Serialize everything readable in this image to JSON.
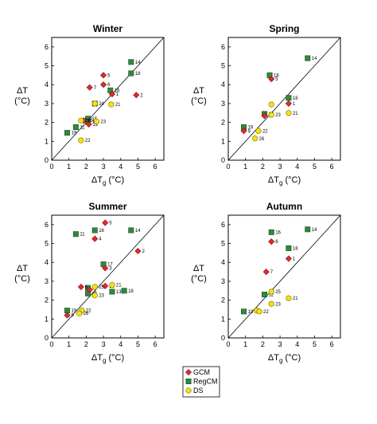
{
  "chart_data": [
    {
      "type": "scatter",
      "title": "Winter",
      "xlabel_main": "ΔT",
      "xlabel_sub": "g",
      "xlabel_unit": "(°C)",
      "ylabel_line1": "ΔT",
      "ylabel_line2": "(°C)",
      "xlim": [
        0,
        6.5
      ],
      "ylim": [
        0,
        6.5
      ],
      "xticks": [
        "0",
        "1",
        "2",
        "3",
        "4",
        "5",
        "6"
      ],
      "yticks": [
        "0",
        "1",
        "2",
        "3",
        "4",
        "5",
        "6"
      ],
      "diagonal": true,
      "series": [
        {
          "name": "GCM",
          "points": [
            {
              "x": 3.0,
              "y": 4.5,
              "label": "5"
            },
            {
              "x": 3.0,
              "y": 4.0,
              "label": "6"
            },
            {
              "x": 2.2,
              "y": 3.85,
              "label": "7"
            },
            {
              "x": 3.5,
              "y": 3.5,
              "label": "1"
            },
            {
              "x": 4.9,
              "y": 3.45,
              "label": "2"
            },
            {
              "x": 1.85,
              "y": 2.1,
              "label": "25"
            },
            {
              "x": 2.15,
              "y": 1.9,
              "label": "22"
            }
          ]
        },
        {
          "name": "RegCM",
          "points": [
            {
              "x": 4.6,
              "y": 5.2,
              "label": "14"
            },
            {
              "x": 4.6,
              "y": 4.6,
              "label": "18"
            },
            {
              "x": 3.4,
              "y": 3.7,
              "label": "16"
            },
            {
              "x": 2.5,
              "y": 3.0,
              "label": "24"
            },
            {
              "x": 2.1,
              "y": 2.2,
              "label": "15"
            },
            {
              "x": 2.1,
              "y": 2.05,
              "label": "12"
            },
            {
              "x": 1.4,
              "y": 1.75,
              "label": "11"
            },
            {
              "x": 0.9,
              "y": 1.45,
              "label": "19"
            }
          ]
        },
        {
          "name": "DS",
          "points": [
            {
              "x": 3.45,
              "y": 2.95,
              "label": "21"
            },
            {
              "x": 2.5,
              "y": 3.0,
              "label": ""
            },
            {
              "x": 2.6,
              "y": 2.05,
              "label": "23"
            },
            {
              "x": 1.7,
              "y": 2.1,
              "label": "26"
            },
            {
              "x": 1.7,
              "y": 1.05,
              "label": "22"
            }
          ]
        }
      ]
    },
    {
      "type": "scatter",
      "title": "Spring",
      "xlabel_main": "ΔT",
      "xlabel_sub": "g",
      "xlabel_unit": "(°C)",
      "ylabel_line1": "ΔT",
      "ylabel_line2": "(°C)",
      "xlim": [
        0,
        6.5
      ],
      "ylim": [
        0,
        6.5
      ],
      "xticks": [
        "0",
        "1",
        "2",
        "3",
        "4",
        "5",
        "6"
      ],
      "yticks": [
        "0",
        "1",
        "2",
        "3",
        "4",
        "5",
        "6"
      ],
      "diagonal": true,
      "series": [
        {
          "name": "GCM",
          "points": [
            {
              "x": 2.5,
              "y": 4.3,
              "label": "5"
            },
            {
              "x": 3.5,
              "y": 3.0,
              "label": "1"
            },
            {
              "x": 2.1,
              "y": 2.35,
              "label": "7"
            },
            {
              "x": 0.9,
              "y": 1.55,
              "label": "9"
            }
          ]
        },
        {
          "name": "RegCM",
          "points": [
            {
              "x": 4.6,
              "y": 5.4,
              "label": "14"
            },
            {
              "x": 2.4,
              "y": 4.5,
              "label": "16"
            },
            {
              "x": 3.5,
              "y": 3.3,
              "label": "18"
            },
            {
              "x": 2.1,
              "y": 2.45,
              "label": "12"
            },
            {
              "x": 0.9,
              "y": 1.75,
              "label": "19"
            }
          ]
        },
        {
          "name": "DS",
          "points": [
            {
              "x": 2.5,
              "y": 2.95,
              "label": ""
            },
            {
              "x": 3.5,
              "y": 2.5,
              "label": "21"
            },
            {
              "x": 2.5,
              "y": 2.4,
              "label": "23"
            },
            {
              "x": 1.75,
              "y": 1.55,
              "label": "22"
            },
            {
              "x": 1.55,
              "y": 1.15,
              "label": "26"
            }
          ]
        }
      ]
    },
    {
      "type": "scatter",
      "title": "Summer",
      "xlabel_main": "ΔT",
      "xlabel_sub": "g",
      "xlabel_unit": "(°C)",
      "ylabel_line1": "ΔT",
      "ylabel_line2": "(°C)",
      "xlim": [
        0,
        6.5
      ],
      "ylim": [
        0,
        6.5
      ],
      "xticks": [
        "0",
        "1",
        "2",
        "3",
        "4",
        "5",
        "6"
      ],
      "yticks": [
        "0",
        "1",
        "2",
        "3",
        "4",
        "5",
        "6"
      ],
      "diagonal": true,
      "series": [
        {
          "name": "GCM",
          "points": [
            {
              "x": 3.1,
              "y": 6.1,
              "label": "5"
            },
            {
              "x": 2.5,
              "y": 5.25,
              "label": "4"
            },
            {
              "x": 5.0,
              "y": 4.6,
              "label": "2"
            },
            {
              "x": 3.1,
              "y": 3.7,
              "label": "3"
            },
            {
              "x": 1.7,
              "y": 2.7,
              "label": "6"
            },
            {
              "x": 2.2,
              "y": 2.55,
              "label": "1"
            },
            {
              "x": 3.1,
              "y": 2.75,
              "label": "25"
            },
            {
              "x": 0.9,
              "y": 1.2,
              "label": "9"
            }
          ]
        },
        {
          "name": "RegCM",
          "points": [
            {
              "x": 1.4,
              "y": 5.5,
              "label": "11"
            },
            {
              "x": 2.5,
              "y": 5.7,
              "label": "16"
            },
            {
              "x": 4.6,
              "y": 5.7,
              "label": "14"
            },
            {
              "x": 3.0,
              "y": 3.9,
              "label": "17"
            },
            {
              "x": 2.1,
              "y": 2.65,
              "label": "7"
            },
            {
              "x": 2.1,
              "y": 2.35,
              "label": "15"
            },
            {
              "x": 3.5,
              "y": 2.45,
              "label": "13"
            },
            {
              "x": 4.2,
              "y": 2.5,
              "label": "18"
            },
            {
              "x": 0.9,
              "y": 1.45,
              "label": "19"
            }
          ]
        },
        {
          "name": "DS",
          "points": [
            {
              "x": 2.5,
              "y": 2.7,
              "label": "25"
            },
            {
              "x": 3.5,
              "y": 2.8,
              "label": "21"
            },
            {
              "x": 2.5,
              "y": 2.25,
              "label": "23"
            },
            {
              "x": 1.75,
              "y": 1.45,
              "label": "22"
            },
            {
              "x": 1.6,
              "y": 1.3,
              "label": "26"
            }
          ]
        }
      ]
    },
    {
      "type": "scatter",
      "title": "Autumn",
      "xlabel_main": "ΔT",
      "xlabel_sub": "g",
      "xlabel_unit": "(°C)",
      "ylabel_line1": "ΔT",
      "ylabel_line2": "(°C)",
      "xlim": [
        0,
        6.5
      ],
      "ylim": [
        0,
        6.5
      ],
      "xticks": [
        "0",
        "1",
        "2",
        "3",
        "4",
        "5",
        "6"
      ],
      "yticks": [
        "0",
        "1",
        "2",
        "3",
        "4",
        "5",
        "6"
      ],
      "diagonal": true,
      "series": [
        {
          "name": "GCM",
          "points": [
            {
              "x": 2.5,
              "y": 5.1,
              "label": "6"
            },
            {
              "x": 3.5,
              "y": 4.2,
              "label": "1"
            },
            {
              "x": 2.2,
              "y": 3.5,
              "label": "7"
            }
          ]
        },
        {
          "name": "RegCM",
          "points": [
            {
              "x": 4.6,
              "y": 5.75,
              "label": "14"
            },
            {
              "x": 2.5,
              "y": 5.6,
              "label": "16"
            },
            {
              "x": 3.5,
              "y": 4.75,
              "label": "18"
            },
            {
              "x": 2.1,
              "y": 2.3,
              "label": "12"
            },
            {
              "x": 0.9,
              "y": 1.4,
              "label": "19"
            }
          ]
        },
        {
          "name": "DS",
          "points": [
            {
              "x": 2.5,
              "y": 2.45,
              "label": "25"
            },
            {
              "x": 3.5,
              "y": 2.1,
              "label": "21"
            },
            {
              "x": 2.5,
              "y": 1.8,
              "label": "23"
            },
            {
              "x": 1.65,
              "y": 1.45,
              "label": ""
            },
            {
              "x": 1.8,
              "y": 1.4,
              "label": "22"
            }
          ]
        }
      ]
    }
  ],
  "legend": {
    "items": [
      {
        "label": "GCM",
        "marker": "diamond",
        "color": "#e8272c"
      },
      {
        "label": "RegCM",
        "marker": "square",
        "color": "#2f8a3c"
      },
      {
        "label": "DS",
        "marker": "circle",
        "color": "#f5e30f"
      }
    ],
    "placement": "bottom-center"
  }
}
